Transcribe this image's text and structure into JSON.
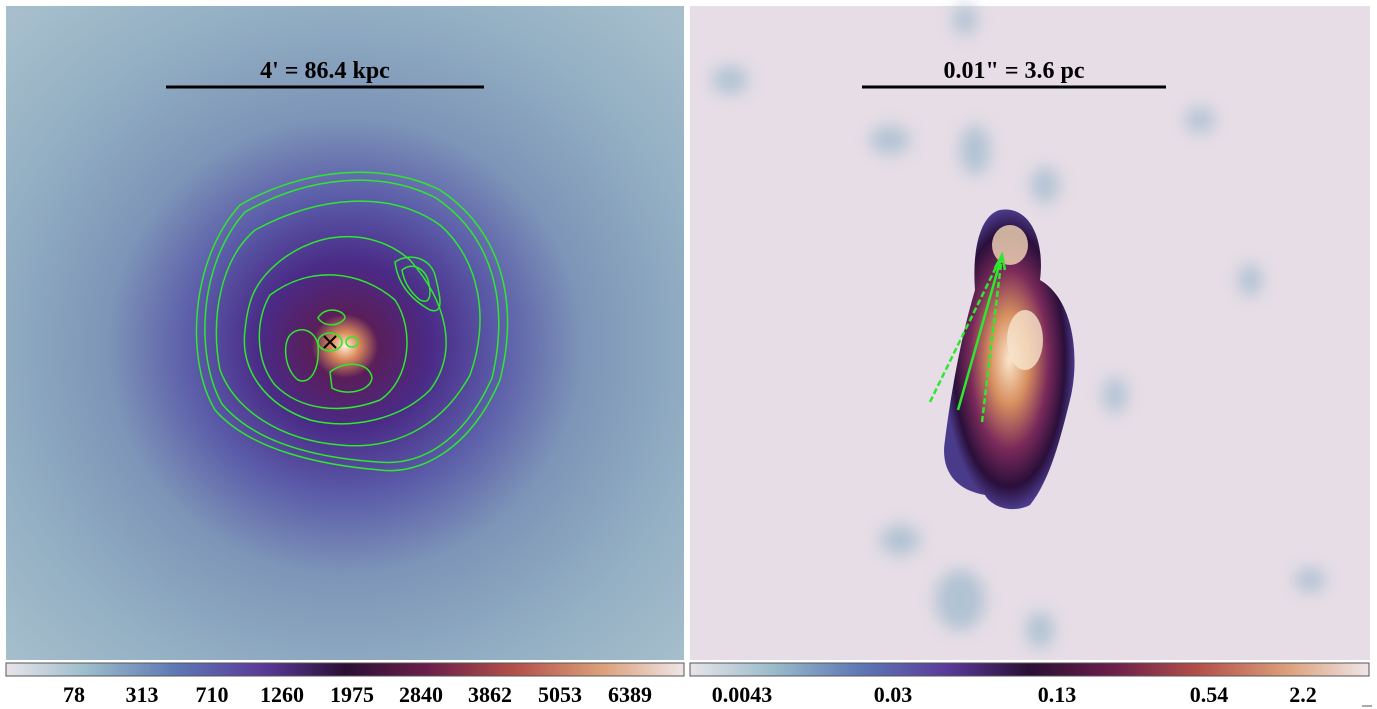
{
  "panels": [
    {
      "scalebar": "4' = 86.4 kpc",
      "colorbar_ticks": [
        "78",
        "313",
        "710",
        "1260",
        "1975",
        "2840",
        "3862",
        "5053",
        "6389"
      ]
    },
    {
      "scalebar": "0.01\" = 3.6 pc",
      "colorbar_ticks": [
        "0.0043",
        "0.03",
        "0.13",
        "0.54",
        "2.2"
      ]
    }
  ]
}
